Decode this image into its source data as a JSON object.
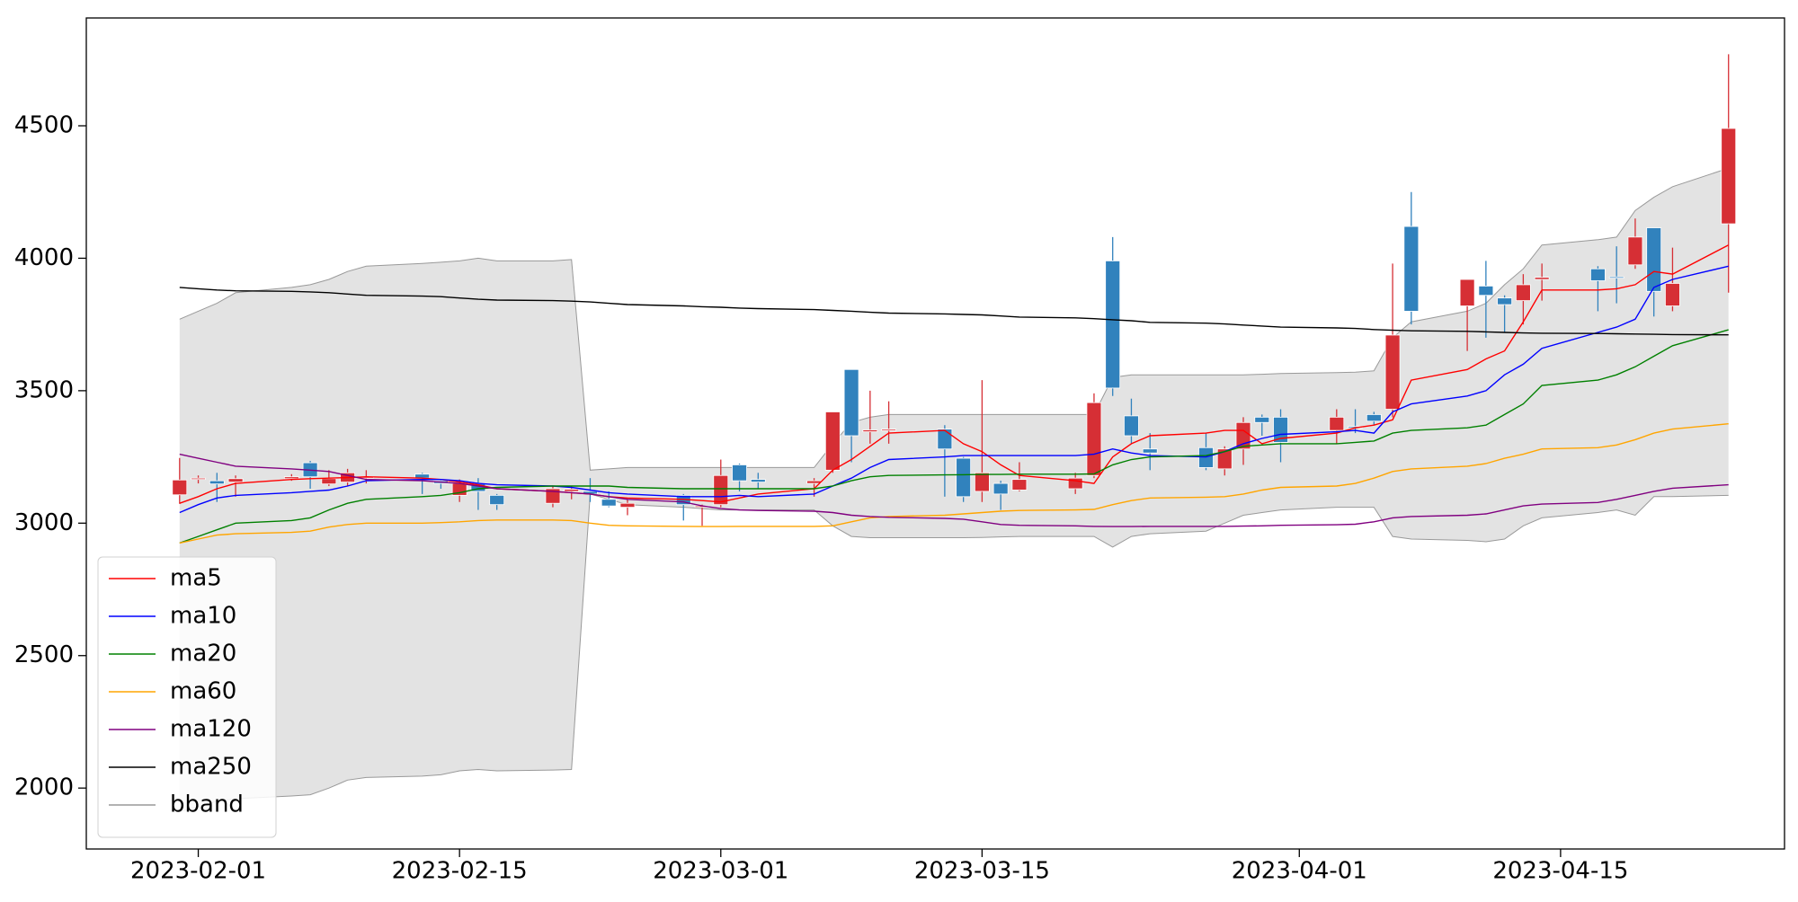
{
  "chart_data": {
    "type": "candlestick",
    "x": [
      "2023-01-31",
      "2023-02-01",
      "2023-02-02",
      "2023-02-03",
      "2023-02-06",
      "2023-02-07",
      "2023-02-08",
      "2023-02-09",
      "2023-02-10",
      "2023-02-13",
      "2023-02-14",
      "2023-02-15",
      "2023-02-16",
      "2023-02-17",
      "2023-02-20",
      "2023-02-21",
      "2023-02-22",
      "2023-02-23",
      "2023-02-24",
      "2023-02-27",
      "2023-02-28",
      "2023-03-01",
      "2023-03-02",
      "2023-03-03",
      "2023-03-06",
      "2023-03-07",
      "2023-03-08",
      "2023-03-09",
      "2023-03-10",
      "2023-03-13",
      "2023-03-14",
      "2023-03-15",
      "2023-03-16",
      "2023-03-17",
      "2023-03-20",
      "2023-03-21",
      "2023-03-22",
      "2023-03-23",
      "2023-03-24",
      "2023-03-27",
      "2023-03-28",
      "2023-03-29",
      "2023-03-30",
      "2023-03-31",
      "2023-04-03",
      "2023-04-04",
      "2023-04-05",
      "2023-04-06",
      "2023-04-07",
      "2023-04-10",
      "2023-04-11",
      "2023-04-12",
      "2023-04-13",
      "2023-04-14",
      "2023-04-17",
      "2023-04-18",
      "2023-04-19",
      "2023-04-20",
      "2023-04-21",
      "2023-04-24"
    ],
    "open": [
      3107,
      3165,
      3160,
      3155,
      3168,
      3228,
      3148,
      3155,
      3170,
      3185,
      3160,
      3105,
      3148,
      3105,
      3075,
      3120,
      3120,
      3090,
      3060,
      3105,
      3060,
      3070,
      3220,
      3165,
      3150,
      3200,
      3580,
      3345,
      3350,
      3355,
      3245,
      3120,
      3150,
      3125,
      3130,
      3180,
      3990,
      3405,
      3280,
      3285,
      3205,
      3280,
      3400,
      3400,
      3350,
      3365,
      3410,
      3430,
      4120,
      3820,
      3895,
      3850,
      3840,
      3920,
      3960,
      3930,
      3975,
      4115,
      3820,
      4130
    ],
    "high": [
      3246,
      3180,
      3190,
      3180,
      3185,
      3235,
      3200,
      3205,
      3200,
      3190,
      3165,
      3165,
      3170,
      3110,
      3140,
      3140,
      3170,
      3120,
      3090,
      3110,
      3070,
      3240,
      3225,
      3190,
      3170,
      3420,
      3580,
      3500,
      3460,
      3370,
      3250,
      3540,
      3160,
      3230,
      3190,
      3490,
      4080,
      3470,
      3340,
      3340,
      3290,
      3400,
      3410,
      3430,
      3430,
      3430,
      3420,
      3980,
      4250,
      3920,
      3990,
      3860,
      3940,
      3980,
      3970,
      4045,
      4150,
      4115,
      4040,
      4770
    ],
    "low": [
      3073,
      3150,
      3080,
      3100,
      3160,
      3130,
      3140,
      3140,
      3150,
      3110,
      3130,
      3080,
      3050,
      3050,
      3060,
      3090,
      3080,
      3060,
      3030,
      3010,
      2990,
      3060,
      3120,
      3130,
      3100,
      3190,
      3230,
      3300,
      3300,
      3100,
      3080,
      3080,
      3050,
      3120,
      3110,
      3170,
      3480,
      3300,
      3200,
      3200,
      3180,
      3220,
      3330,
      3230,
      3300,
      3340,
      3370,
      3400,
      3750,
      3650,
      3700,
      3720,
      3750,
      3840,
      3800,
      3830,
      3960,
      3780,
      3800,
      3870
    ],
    "close": [
      3163,
      3170,
      3148,
      3168,
      3175,
      3175,
      3168,
      3190,
      3176,
      3170,
      3150,
      3150,
      3120,
      3070,
      3130,
      3128,
      3110,
      3065,
      3075,
      3070,
      3065,
      3180,
      3160,
      3155,
      3160,
      3420,
      3330,
      3352,
      3355,
      3280,
      3100,
      3190,
      3110,
      3165,
      3170,
      3455,
      3510,
      3330,
      3265,
      3210,
      3280,
      3380,
      3380,
      3305,
      3400,
      3360,
      3385,
      3710,
      3800,
      3920,
      3860,
      3825,
      3900,
      3928,
      3915,
      3925,
      4080,
      3875,
      3905,
      4490
    ],
    "up_color": "#d62f35",
    "down_color": "#3182bd",
    "series": [
      {
        "name": "ma5",
        "color": "#ff0000",
        "values": [
          3075,
          3100,
          3130,
          3150,
          3165,
          3168,
          3170,
          3172,
          3175,
          3170,
          3165,
          3155,
          3145,
          3130,
          3120,
          3115,
          3110,
          3100,
          3095,
          3090,
          3085,
          3080,
          3095,
          3110,
          3130,
          3200,
          3240,
          3290,
          3340,
          3350,
          3300,
          3270,
          3220,
          3180,
          3160,
          3150,
          3250,
          3300,
          3330,
          3340,
          3350,
          3350,
          3300,
          3320,
          3340,
          3360,
          3370,
          3390,
          3540,
          3580,
          3620,
          3650,
          3760,
          3880,
          3880,
          3885,
          3900,
          3950,
          3940,
          4050
        ]
      },
      {
        "name": "ma10",
        "color": "#0000ff",
        "values": [
          3040,
          3070,
          3095,
          3105,
          3115,
          3120,
          3125,
          3140,
          3160,
          3165,
          3165,
          3160,
          3150,
          3145,
          3140,
          3135,
          3125,
          3115,
          3110,
          3100,
          3100,
          3100,
          3105,
          3100,
          3110,
          3140,
          3170,
          3210,
          3240,
          3250,
          3255,
          3255,
          3255,
          3255,
          3255,
          3260,
          3280,
          3265,
          3255,
          3250,
          3270,
          3300,
          3320,
          3335,
          3345,
          3350,
          3340,
          3420,
          3450,
          3480,
          3500,
          3560,
          3600,
          3660,
          3720,
          3740,
          3770,
          3890,
          3920,
          3970
        ]
      },
      {
        "name": "ma20",
        "color": "#008000",
        "values": [
          2925,
          2950,
          2975,
          3000,
          3010,
          3020,
          3050,
          3075,
          3090,
          3100,
          3105,
          3115,
          3130,
          3135,
          3140,
          3140,
          3140,
          3140,
          3135,
          3130,
          3130,
          3130,
          3130,
          3130,
          3130,
          3140,
          3160,
          3175,
          3180,
          3182,
          3183,
          3184,
          3184,
          3185,
          3185,
          3186,
          3220,
          3240,
          3250,
          3255,
          3270,
          3290,
          3295,
          3300,
          3300,
          3305,
          3310,
          3340,
          3350,
          3360,
          3370,
          3410,
          3450,
          3520,
          3540,
          3560,
          3590,
          3630,
          3670,
          3730
        ]
      },
      {
        "name": "ma60",
        "color": "#ffa500",
        "values": [
          2925,
          2940,
          2955,
          2960,
          2965,
          2970,
          2985,
          2995,
          3000,
          3000,
          3002,
          3005,
          3010,
          3012,
          3012,
          3010,
          3000,
          2992,
          2990,
          2988,
          2987,
          2987,
          2988,
          2988,
          2988,
          2990,
          3005,
          3020,
          3025,
          3030,
          3035,
          3040,
          3045,
          3048,
          3050,
          3052,
          3070,
          3085,
          3095,
          3098,
          3100,
          3110,
          3125,
          3135,
          3140,
          3150,
          3170,
          3195,
          3205,
          3215,
          3225,
          3245,
          3260,
          3280,
          3285,
          3295,
          3315,
          3340,
          3355,
          3375
        ]
      },
      {
        "name": "ma120",
        "color": "#800080",
        "values": [
          3260,
          3245,
          3230,
          3215,
          3205,
          3200,
          3195,
          3180,
          3165,
          3160,
          3155,
          3150,
          3140,
          3130,
          3120,
          3115,
          3110,
          3100,
          3090,
          3080,
          3065,
          3055,
          3050,
          3048,
          3045,
          3040,
          3030,
          3025,
          3022,
          3018,
          3015,
          3005,
          2995,
          2992,
          2990,
          2988,
          2987,
          2987,
          2988,
          2988,
          2988,
          2989,
          2990,
          2992,
          2994,
          2996,
          3005,
          3020,
          3025,
          3030,
          3035,
          3050,
          3065,
          3072,
          3078,
          3090,
          3105,
          3120,
          3132,
          3145
        ]
      },
      {
        "name": "ma250",
        "color": "#000000",
        "values": [
          3890,
          3885,
          3880,
          3877,
          3875,
          3873,
          3870,
          3865,
          3860,
          3857,
          3855,
          3850,
          3845,
          3842,
          3840,
          3838,
          3835,
          3830,
          3825,
          3820,
          3817,
          3815,
          3812,
          3810,
          3806,
          3803,
          3800,
          3796,
          3793,
          3790,
          3788,
          3786,
          3782,
          3778,
          3775,
          3772,
          3768,
          3764,
          3758,
          3755,
          3752,
          3748,
          3744,
          3740,
          3737,
          3735,
          3731,
          3728,
          3726,
          3724,
          3722,
          3720,
          3718,
          3717,
          3716,
          3715,
          3714,
          3713,
          3712,
          3711
        ]
      }
    ],
    "band": {
      "name": "bband",
      "color": "#999999",
      "fill": "#e3e3e3",
      "upper": [
        3770,
        3800,
        3830,
        3870,
        3890,
        3900,
        3920,
        3950,
        3970,
        3980,
        3985,
        3990,
        4000,
        3990,
        3990,
        3995,
        3200,
        3205,
        3210,
        3210,
        3210,
        3210,
        3210,
        3210,
        3210,
        3300,
        3380,
        3400,
        3410,
        3410,
        3410,
        3410,
        3410,
        3410,
        3410,
        3410,
        3550,
        3560,
        3560,
        3560,
        3560,
        3560,
        3562,
        3565,
        3568,
        3570,
        3575,
        3700,
        3760,
        3800,
        3830,
        3900,
        3960,
        4050,
        4070,
        4080,
        4180,
        4230,
        4270,
        4340
      ],
      "lower": [
        1910,
        1930,
        1950,
        1960,
        1970,
        1975,
        2000,
        2030,
        2040,
        2045,
        2050,
        2065,
        2070,
        2065,
        2068,
        2070,
        3110,
        3090,
        3070,
        3060,
        3055,
        3050,
        3050,
        3050,
        3050,
        2990,
        2950,
        2945,
        2945,
        2945,
        2945,
        2946,
        2948,
        2950,
        2950,
        2950,
        2910,
        2950,
        2960,
        2970,
        3000,
        3030,
        3040,
        3050,
        3060,
        3060,
        3060,
        2950,
        2940,
        2935,
        2930,
        2940,
        2990,
        3020,
        3040,
        3050,
        3030,
        3100,
        3100,
        3105
      ]
    },
    "xlim": [
      "2023-01-26",
      "2023-04-27"
    ],
    "xticks": [
      "2023-02-01",
      "2023-02-15",
      "2023-03-01",
      "2023-03-15",
      "2023-04-01",
      "2023-04-15"
    ],
    "ylim": [
      1770,
      4907
    ],
    "yticks": [
      2000,
      2500,
      3000,
      3500,
      4000,
      4500
    ],
    "grid": false,
    "legend": "lower left"
  }
}
